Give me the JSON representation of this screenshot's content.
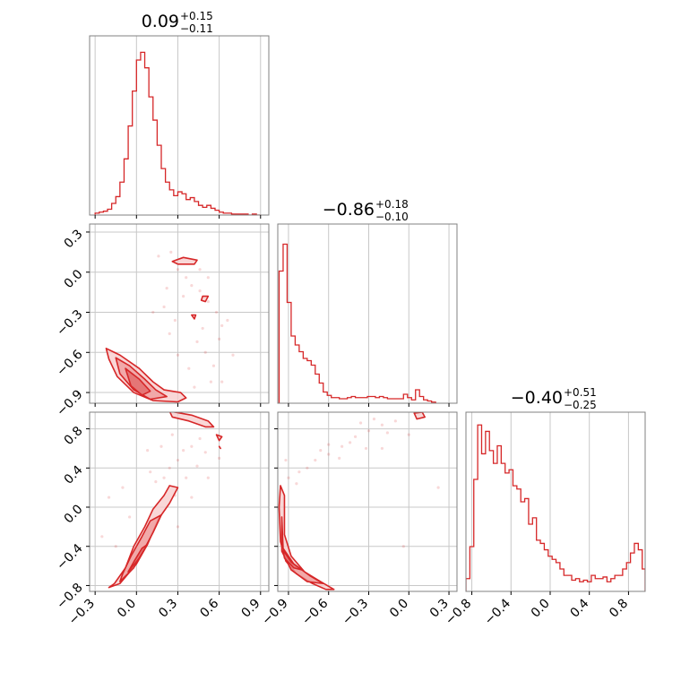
{
  "figure": {
    "type": "corner plot",
    "colors": {
      "accent": "#d62728",
      "fill_light": "#f7c9c9",
      "fill_mid": "#ee9a9a",
      "fill_dark": "#e06666",
      "frame": "#808080",
      "grid": "#c8c8c8"
    }
  },
  "titles": [
    {
      "main": "0.09",
      "plus": "+0.15",
      "minus": "−0.11"
    },
    {
      "main": "−0.86",
      "plus": "+0.18",
      "minus": "−0.10"
    },
    {
      "main": "−0.40",
      "plus": "+0.51",
      "minus": "−0.25"
    }
  ],
  "chart_data": [
    {
      "type": "histogram",
      "panel": "param-1-marginal",
      "xlim": [
        -0.34,
        0.96
      ],
      "x_ticks": [
        -0.3,
        0.0,
        0.3,
        0.6,
        0.9
      ],
      "bins": [
        -0.3,
        -0.27,
        -0.24,
        -0.21,
        -0.18,
        -0.15,
        -0.12,
        -0.09,
        -0.06,
        -0.03,
        0.0,
        0.03,
        0.06,
        0.09,
        0.12,
        0.15,
        0.18,
        0.21,
        0.24,
        0.27,
        0.3,
        0.33,
        0.36,
        0.39,
        0.42,
        0.45,
        0.48,
        0.51,
        0.54,
        0.57,
        0.6,
        0.63,
        0.66,
        0.69,
        0.72,
        0.75,
        0.78,
        0.81,
        0.84,
        0.87,
        0.9
      ],
      "values": [
        2,
        3,
        4,
        6,
        12,
        19,
        34,
        58,
        92,
        128,
        160,
        168,
        152,
        122,
        98,
        72,
        48,
        34,
        26,
        20,
        24,
        22,
        16,
        18,
        14,
        10,
        8,
        10,
        7,
        5,
        3,
        2,
        2,
        1,
        1,
        1,
        1,
        0,
        1,
        0
      ],
      "ylim": [
        0,
        185
      ]
    },
    {
      "type": "histogram",
      "panel": "param-2-marginal",
      "xlim": [
        -0.98,
        0.36
      ],
      "x_ticks": [
        -0.9,
        -0.6,
        -0.3,
        0.0,
        0.3
      ],
      "bins": [
        -0.97,
        -0.94,
        -0.91,
        -0.88,
        -0.85,
        -0.82,
        -0.79,
        -0.76,
        -0.73,
        -0.7,
        -0.67,
        -0.64,
        -0.61,
        -0.58,
        -0.55,
        -0.52,
        -0.49,
        -0.46,
        -0.43,
        -0.4,
        -0.37,
        -0.34,
        -0.31,
        -0.28,
        -0.25,
        -0.22,
        -0.19,
        -0.16,
        -0.13,
        -0.1,
        -0.07,
        -0.04,
        -0.01,
        0.02,
        0.05,
        0.08,
        0.11,
        0.14,
        0.17,
        0.2
      ],
      "values": [
        118,
        142,
        90,
        60,
        52,
        46,
        40,
        38,
        34,
        26,
        18,
        10,
        7,
        5,
        5,
        4,
        4,
        5,
        6,
        5,
        5,
        5,
        6,
        6,
        5,
        6,
        5,
        4,
        4,
        4,
        4,
        8,
        5,
        3,
        12,
        6,
        3,
        2,
        1
      ],
      "ylim": [
        0,
        160
      ]
    },
    {
      "type": "histogram",
      "panel": "param-3-marginal",
      "xlim": [
        -0.86,
        0.97
      ],
      "x_ticks": [
        -0.8,
        -0.4,
        0.0,
        0.4,
        0.8
      ],
      "bins": [
        -0.86,
        -0.82,
        -0.78,
        -0.74,
        -0.7,
        -0.66,
        -0.62,
        -0.58,
        -0.54,
        -0.5,
        -0.46,
        -0.42,
        -0.38,
        -0.34,
        -0.3,
        -0.26,
        -0.22,
        -0.18,
        -0.14,
        -0.1,
        -0.06,
        -0.02,
        0.02,
        0.06,
        0.1,
        0.14,
        0.18,
        0.22,
        0.26,
        0.3,
        0.34,
        0.38,
        0.42,
        0.46,
        0.5,
        0.54,
        0.58,
        0.62,
        0.66,
        0.7,
        0.74,
        0.78,
        0.82,
        0.86,
        0.9,
        0.94,
        0.97
      ],
      "values": [
        8,
        28,
        70,
        104,
        86,
        100,
        88,
        80,
        91,
        80,
        74,
        76,
        66,
        64,
        56,
        58,
        42,
        46,
        32,
        30,
        26,
        22,
        20,
        18,
        14,
        10,
        10,
        7,
        8,
        6,
        7,
        6,
        10,
        8,
        8,
        9,
        6,
        8,
        10,
        10,
        14,
        18,
        24,
        30,
        26,
        14
      ],
      "ylim": [
        0,
        112
      ]
    },
    {
      "type": "scatter-contour",
      "panel": "param-2-vs-param-1",
      "xlim": [
        -0.34,
        0.96
      ],
      "ylim": [
        -0.98,
        0.36
      ],
      "x_ticks": [
        -0.3,
        0.0,
        0.3,
        0.6,
        0.9
      ],
      "y_ticks": [
        0.3,
        0.0,
        -0.3,
        -0.6,
        -0.9
      ],
      "contours": [
        {
          "level": "outer",
          "points": [
            [
              -0.22,
              -0.57
            ],
            [
              -0.12,
              -0.62
            ],
            [
              0.02,
              -0.72
            ],
            [
              0.12,
              -0.82
            ],
            [
              0.2,
              -0.88
            ],
            [
              0.32,
              -0.9
            ],
            [
              0.36,
              -0.94
            ],
            [
              0.3,
              -0.97
            ],
            [
              0.12,
              -0.96
            ],
            [
              -0.02,
              -0.9
            ],
            [
              -0.14,
              -0.78
            ],
            [
              -0.2,
              -0.65
            ]
          ]
        },
        {
          "level": "mid",
          "points": [
            [
              -0.15,
              -0.64
            ],
            [
              -0.05,
              -0.7
            ],
            [
              0.06,
              -0.8
            ],
            [
              0.14,
              -0.88
            ],
            [
              0.22,
              -0.93
            ],
            [
              0.1,
              -0.95
            ],
            [
              -0.02,
              -0.88
            ],
            [
              -0.12,
              -0.76
            ]
          ]
        },
        {
          "level": "inner",
          "points": [
            [
              -0.08,
              -0.72
            ],
            [
              0.02,
              -0.8
            ],
            [
              0.1,
              -0.89
            ],
            [
              0.04,
              -0.92
            ],
            [
              -0.04,
              -0.85
            ]
          ]
        },
        {
          "level": "outer",
          "points": [
            [
              0.26,
              0.08
            ],
            [
              0.34,
              0.11
            ],
            [
              0.44,
              0.09
            ],
            [
              0.42,
              0.06
            ],
            [
              0.3,
              0.06
            ]
          ]
        },
        {
          "level": "outer",
          "points": [
            [
              0.48,
              -0.18
            ],
            [
              0.52,
              -0.18
            ],
            [
              0.5,
              -0.22
            ],
            [
              0.47,
              -0.21
            ]
          ]
        },
        {
          "level": "outer",
          "points": [
            [
              0.4,
              -0.32
            ],
            [
              0.43,
              -0.32
            ],
            [
              0.42,
              -0.35
            ]
          ]
        }
      ],
      "scatter": [
        [
          0.25,
          0.15
        ],
        [
          0.3,
          0.02
        ],
        [
          0.36,
          -0.04
        ],
        [
          0.4,
          -0.1
        ],
        [
          0.46,
          -0.14
        ],
        [
          0.52,
          -0.22
        ],
        [
          0.58,
          -0.3
        ],
        [
          0.62,
          -0.4
        ],
        [
          0.34,
          -0.18
        ],
        [
          0.2,
          -0.26
        ],
        [
          0.16,
          0.12
        ],
        [
          0.24,
          -0.46
        ],
        [
          0.44,
          -0.52
        ],
        [
          0.5,
          -0.6
        ],
        [
          0.56,
          -0.7
        ],
        [
          0.38,
          -0.72
        ],
        [
          0.3,
          -0.62
        ],
        [
          0.6,
          -0.5
        ],
        [
          0.66,
          -0.36
        ],
        [
          0.52,
          -0.04
        ],
        [
          0.46,
          0.02
        ],
        [
          0.22,
          -0.12
        ],
        [
          0.12,
          -0.3
        ],
        [
          0.7,
          -0.62
        ],
        [
          0.62,
          -0.82
        ],
        [
          0.42,
          -0.86
        ],
        [
          0.48,
          -0.42
        ],
        [
          0.28,
          -0.36
        ],
        [
          0.54,
          -0.82
        ]
      ]
    },
    {
      "type": "scatter-contour",
      "panel": "param-3-vs-param-1",
      "xlim": [
        -0.34,
        0.96
      ],
      "ylim": [
        -0.86,
        0.97
      ],
      "x_ticks": [
        -0.3,
        0.0,
        0.3,
        0.6,
        0.9
      ],
      "y_ticks": [
        0.8,
        0.4,
        0.0,
        -0.4,
        -0.8
      ],
      "contours": [
        {
          "level": "outer",
          "points": [
            [
              -0.2,
              -0.82
            ],
            [
              -0.12,
              -0.78
            ],
            [
              0.0,
              -0.58
            ],
            [
              0.08,
              -0.38
            ],
            [
              0.16,
              -0.12
            ],
            [
              0.24,
              0.04
            ],
            [
              0.3,
              0.2
            ],
            [
              0.24,
              0.22
            ],
            [
              0.2,
              0.12
            ],
            [
              0.12,
              -0.02
            ],
            [
              0.06,
              -0.2
            ],
            [
              -0.02,
              -0.4
            ],
            [
              -0.08,
              -0.62
            ],
            [
              -0.16,
              -0.78
            ]
          ]
        },
        {
          "level": "mid",
          "points": [
            [
              -0.12,
              -0.76
            ],
            [
              -0.02,
              -0.62
            ],
            [
              0.06,
              -0.42
            ],
            [
              0.12,
              -0.26
            ],
            [
              0.18,
              -0.08
            ],
            [
              0.1,
              -0.14
            ],
            [
              0.04,
              -0.3
            ],
            [
              -0.04,
              -0.5
            ],
            [
              -0.1,
              -0.68
            ]
          ]
        },
        {
          "level": "inner",
          "points": [
            [
              -0.06,
              -0.66
            ],
            [
              0.02,
              -0.52
            ],
            [
              0.08,
              -0.38
            ],
            [
              0.04,
              -0.42
            ],
            [
              -0.02,
              -0.56
            ]
          ]
        },
        {
          "level": "outer",
          "points": [
            [
              0.24,
              0.98
            ],
            [
              0.4,
              0.94
            ],
            [
              0.52,
              0.88
            ],
            [
              0.56,
              0.82
            ],
            [
              0.5,
              0.82
            ],
            [
              0.38,
              0.88
            ],
            [
              0.26,
              0.92
            ]
          ]
        },
        {
          "level": "outer",
          "points": [
            [
              0.58,
              0.74
            ],
            [
              0.62,
              0.72
            ],
            [
              0.6,
              0.68
            ]
          ]
        },
        {
          "level": "outer",
          "points": [
            [
              0.6,
              0.62
            ],
            [
              0.61,
              0.6
            ]
          ]
        }
      ],
      "scatter": [
        [
          0.2,
          0.3
        ],
        [
          0.3,
          0.48
        ],
        [
          0.34,
          0.58
        ],
        [
          0.24,
          0.4
        ],
        [
          0.14,
          0.26
        ],
        [
          0.4,
          0.62
        ],
        [
          0.46,
          0.7
        ],
        [
          0.36,
          0.3
        ],
        [
          0.28,
          0.12
        ],
        [
          0.44,
          0.42
        ],
        [
          0.5,
          0.56
        ],
        [
          0.6,
          0.5
        ],
        [
          0.1,
          0.36
        ],
        [
          -0.05,
          -0.1
        ],
        [
          -0.2,
          0.1
        ],
        [
          -0.25,
          -0.3
        ],
        [
          0.4,
          0.1
        ],
        [
          0.3,
          -0.2
        ],
        [
          -0.1,
          0.2
        ],
        [
          0.52,
          0.3
        ],
        [
          0.18,
          0.62
        ],
        [
          0.26,
          0.74
        ],
        [
          0.08,
          0.58
        ],
        [
          -0.15,
          -0.4
        ]
      ]
    },
    {
      "type": "scatter-contour",
      "panel": "param-3-vs-param-2",
      "xlim": [
        -0.98,
        0.36
      ],
      "ylim": [
        -0.86,
        0.97
      ],
      "x_ticks": [
        -0.9,
        -0.6,
        -0.3,
        0.0,
        0.3
      ],
      "y_ticks": [
        0.8,
        0.4,
        0.0,
        -0.4,
        -0.8
      ],
      "contours": [
        {
          "level": "outer",
          "points": [
            [
              -0.96,
              0.22
            ],
            [
              -0.93,
              0.12
            ],
            [
              -0.93,
              -0.28
            ],
            [
              -0.88,
              -0.5
            ],
            [
              -0.78,
              -0.66
            ],
            [
              -0.66,
              -0.76
            ],
            [
              -0.56,
              -0.84
            ],
            [
              -0.62,
              -0.84
            ],
            [
              -0.72,
              -0.78
            ],
            [
              -0.84,
              -0.68
            ],
            [
              -0.92,
              -0.55
            ],
            [
              -0.96,
              -0.35
            ],
            [
              -0.97,
              0.0
            ]
          ]
        },
        {
          "level": "mid",
          "points": [
            [
              -0.95,
              -0.1
            ],
            [
              -0.94,
              -0.42
            ],
            [
              -0.86,
              -0.58
            ],
            [
              -0.74,
              -0.7
            ],
            [
              -0.64,
              -0.78
            ],
            [
              -0.76,
              -0.76
            ],
            [
              -0.88,
              -0.64
            ],
            [
              -0.95,
              -0.45
            ]
          ]
        },
        {
          "level": "inner",
          "points": [
            [
              -0.94,
              -0.44
            ],
            [
              -0.88,
              -0.56
            ],
            [
              -0.8,
              -0.64
            ],
            [
              -0.86,
              -0.62
            ],
            [
              -0.93,
              -0.52
            ]
          ]
        },
        {
          "level": "outer",
          "points": [
            [
              0.04,
              0.96
            ],
            [
              0.1,
              0.97
            ],
            [
              0.12,
              0.92
            ],
            [
              0.06,
              0.9
            ]
          ]
        }
      ],
      "scatter": [
        [
          -0.9,
          0.3
        ],
        [
          -0.82,
          0.36
        ],
        [
          -0.7,
          0.48
        ],
        [
          -0.6,
          0.54
        ],
        [
          -0.5,
          0.62
        ],
        [
          -0.4,
          0.72
        ],
        [
          -0.3,
          0.78
        ],
        [
          -0.2,
          0.84
        ],
        [
          -0.1,
          0.88
        ],
        [
          -0.36,
          0.86
        ],
        [
          -0.26,
          0.9
        ],
        [
          -0.6,
          0.64
        ],
        [
          -0.76,
          0.4
        ],
        [
          -0.84,
          0.24
        ],
        [
          -0.44,
          0.66
        ],
        [
          -0.16,
          0.76
        ],
        [
          -0.52,
          0.5
        ],
        [
          -0.66,
          0.58
        ],
        [
          0.0,
          0.74
        ],
        [
          -0.32,
          0.6
        ],
        [
          0.22,
          0.2
        ],
        [
          -0.04,
          -0.4
        ],
        [
          -0.92,
          0.48
        ],
        [
          -0.2,
          0.6
        ]
      ]
    }
  ]
}
